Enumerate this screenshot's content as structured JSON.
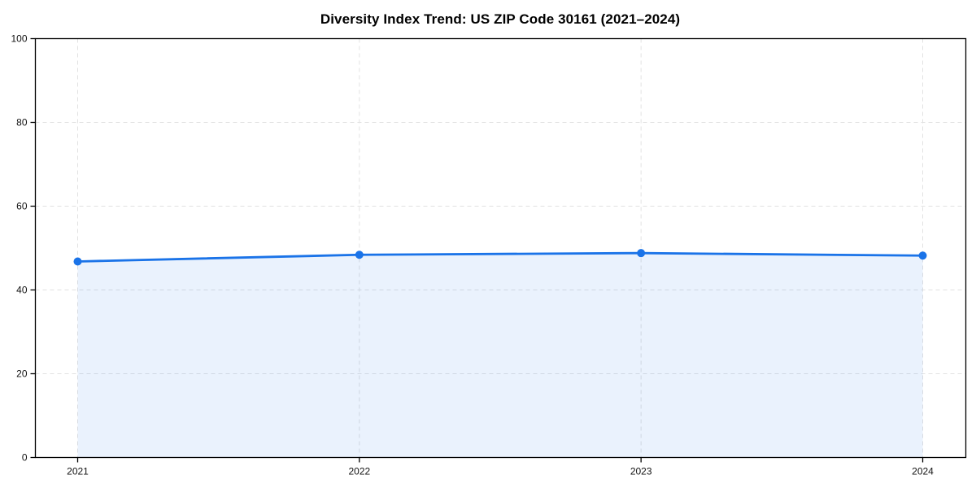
{
  "chart_data": {
    "type": "area",
    "title": "Diversity Index Trend: US ZIP Code 30161 (2021–2024)",
    "series_name": "Diversity Index",
    "categories": [
      "2021",
      "2022",
      "2023",
      "2024"
    ],
    "values": [
      46.8,
      48.4,
      48.8,
      48.2
    ],
    "xlabel": "",
    "ylabel": "",
    "ylim": [
      0,
      100
    ],
    "yticks": [
      0,
      20,
      40,
      60,
      80,
      100
    ],
    "grid": true,
    "grid_style": "dashed",
    "legend": "none",
    "colors": {
      "line": "#1a73e8",
      "marker": "#1a73e8",
      "fill": "rgba(26,115,232,0.09)",
      "grid": "#e2e2e2",
      "axis": "#000000",
      "tick_text": "#111111",
      "background": "#ffffff"
    }
  }
}
